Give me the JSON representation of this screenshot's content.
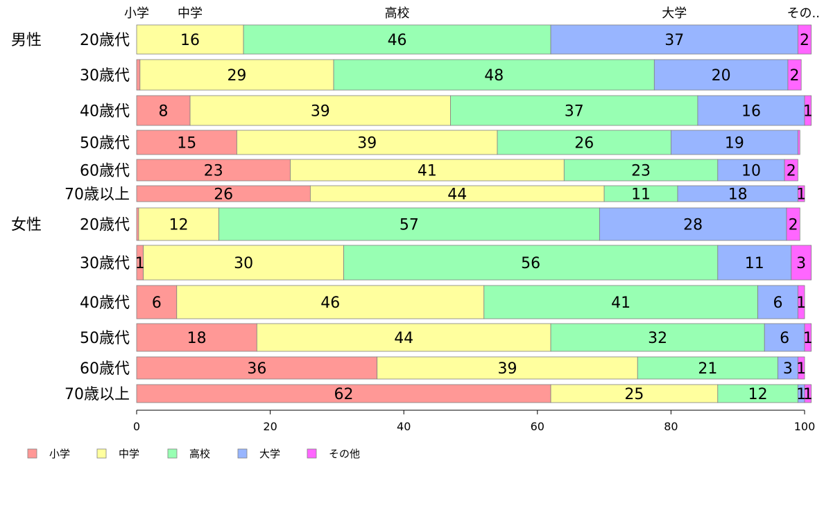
{
  "chart_data": {
    "type": "bar",
    "orientation": "horizontal",
    "stacked": true,
    "xlim": [
      0,
      100
    ],
    "xticks": [
      0,
      20,
      40,
      60,
      80,
      100
    ],
    "grid": false,
    "legend_position": "bottom-left",
    "top_category_labels": [
      "小学",
      "中学",
      "高校",
      "大学",
      "その.."
    ],
    "series": [
      {
        "name": "小学",
        "color": "#ff9896"
      },
      {
        "name": "中学",
        "color": "#ffff9e"
      },
      {
        "name": "高校",
        "color": "#98ffb3"
      },
      {
        "name": "大学",
        "color": "#98b5ff"
      },
      {
        "name": "その他",
        "color": "#ff66ff"
      }
    ],
    "rows": [
      {
        "group": "男性",
        "category": "20歳代",
        "values": [
          0,
          16,
          46,
          37,
          2
        ]
      },
      {
        "group": "",
        "category": "30歳代",
        "values": [
          0.5,
          29,
          48,
          20,
          2
        ]
      },
      {
        "group": "",
        "category": "40歳代",
        "values": [
          8,
          39,
          37,
          16,
          1
        ]
      },
      {
        "group": "",
        "category": "50歳代",
        "values": [
          15,
          39,
          26,
          19,
          0.3
        ]
      },
      {
        "group": "",
        "category": "60歳代",
        "values": [
          23,
          41,
          23,
          10,
          2
        ]
      },
      {
        "group": "",
        "category": "70歳以上",
        "values": [
          26,
          44,
          11,
          18,
          1
        ]
      },
      {
        "group": "女性",
        "category": "20歳代",
        "values": [
          0.3,
          12,
          57,
          28,
          2
        ]
      },
      {
        "group": "",
        "category": "30歳代",
        "values": [
          1,
          30,
          56,
          11,
          3
        ]
      },
      {
        "group": "",
        "category": "40歳代",
        "values": [
          6,
          46,
          41,
          6,
          1
        ]
      },
      {
        "group": "",
        "category": "50歳代",
        "values": [
          18,
          44,
          32,
          6,
          1
        ]
      },
      {
        "group": "",
        "category": "60歳代",
        "values": [
          36,
          39,
          21,
          3,
          1
        ]
      },
      {
        "group": "",
        "category": "70歳以上",
        "values": [
          62,
          25,
          12,
          1,
          1
        ]
      }
    ],
    "data_labels": [
      [
        "",
        "16",
        "46",
        "37",
        "2"
      ],
      [
        "",
        "29",
        "48",
        "20",
        "2"
      ],
      [
        "8",
        "39",
        "37",
        "16",
        "1"
      ],
      [
        "15",
        "39",
        "26",
        "19",
        ""
      ],
      [
        "23",
        "41",
        "23",
        "10",
        "2"
      ],
      [
        "26",
        "44",
        "11",
        "18",
        "1"
      ],
      [
        "",
        "12",
        "57",
        "28",
        "2"
      ],
      [
        "1",
        "30",
        "56",
        "11",
        "3"
      ],
      [
        "6",
        "46",
        "41",
        "6",
        "1"
      ],
      [
        "18",
        "44",
        "32",
        "6",
        "1"
      ],
      [
        "36",
        "39",
        "21",
        "3",
        "1"
      ],
      [
        "62",
        "25",
        "12",
        "1",
        "1"
      ]
    ]
  }
}
